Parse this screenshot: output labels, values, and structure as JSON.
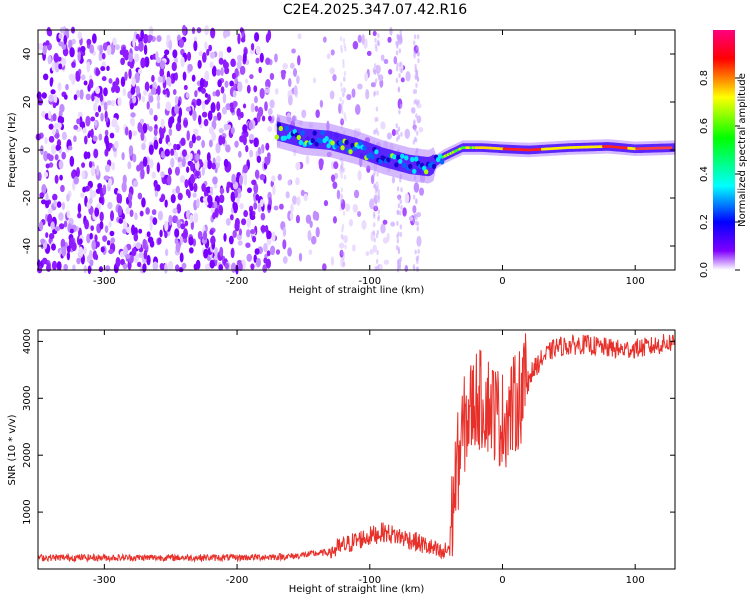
{
  "title": "C2E4.2025.347.07.42.R16",
  "chart_data": [
    {
      "type": "heatmap",
      "name": "spectrogram",
      "xlabel": "Height of straight line (km)",
      "ylabel": "Frequency (Hz)",
      "xlim": [
        -350,
        130
      ],
      "ylim": [
        -50,
        50
      ],
      "xticks": [
        -300,
        -200,
        -100,
        0,
        100
      ],
      "yticks": [
        -40,
        -20,
        0,
        20,
        40
      ],
      "colorbar": {
        "label": "Normalized spectral amplitude",
        "range": [
          0,
          1
        ],
        "ticks": [
          "0.0",
          "0.2",
          "0.4",
          "0.6",
          "0.8"
        ],
        "colors": [
          "#ffffff",
          "#8000ff",
          "#0000ff",
          "#00ffff",
          "#00ff00",
          "#ffff00",
          "#ff0000",
          "#ff0080"
        ]
      },
      "signal_track": [
        [
          -170,
          8
        ],
        [
          -150,
          5
        ],
        [
          -130,
          4
        ],
        [
          -110,
          1
        ],
        [
          -90,
          -3
        ],
        [
          -70,
          -6
        ],
        [
          -55,
          -7
        ],
        [
          -45,
          -3
        ],
        [
          -30,
          1
        ],
        [
          -15,
          1
        ],
        [
          0,
          0.5
        ],
        [
          20,
          0
        ],
        [
          50,
          1
        ],
        [
          80,
          1.5
        ],
        [
          100,
          0.5
        ],
        [
          130,
          1
        ]
      ]
    },
    {
      "type": "line",
      "name": "snr",
      "xlabel": "Height of straight line (km)",
      "ylabel": "SNR (10 * v/v)",
      "xlim": [
        -350,
        130
      ],
      "ylim": [
        0,
        4200
      ],
      "xticks": [
        -300,
        -200,
        -100,
        0,
        100
      ],
      "yticks": [
        1000,
        2000,
        3000,
        4000
      ],
      "color": "#e8302a",
      "envelope": [
        [
          -350,
          200
        ],
        [
          -200,
          200
        ],
        [
          -160,
          220
        ],
        [
          -130,
          300
        ],
        [
          -110,
          500
        ],
        [
          -90,
          650
        ],
        [
          -70,
          520
        ],
        [
          -55,
          380
        ],
        [
          -45,
          250
        ],
        [
          -40,
          400
        ],
        [
          -35,
          1700
        ],
        [
          -28,
          2600
        ],
        [
          -20,
          3000
        ],
        [
          -10,
          2900
        ],
        [
          0,
          2600
        ],
        [
          10,
          2900
        ],
        [
          20,
          3400
        ],
        [
          30,
          3700
        ],
        [
          40,
          3900
        ],
        [
          60,
          3950
        ],
        [
          90,
          3850
        ],
        [
          110,
          3900
        ],
        [
          130,
          4000
        ]
      ]
    }
  ]
}
